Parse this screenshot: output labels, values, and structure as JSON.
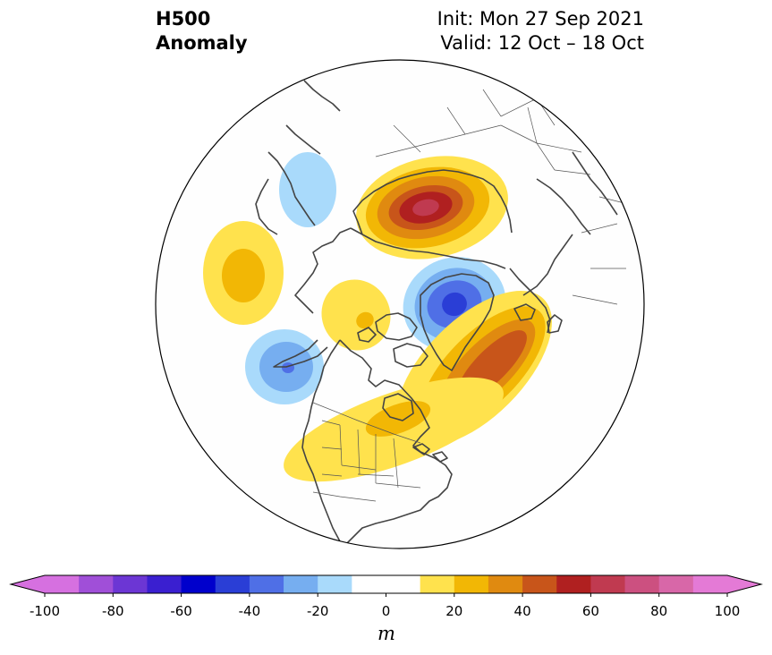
{
  "title": {
    "variable": "H500",
    "kind": "Anomaly",
    "init": "Init: Mon 27 Sep 2021",
    "valid": "Valid: 12 Oct – 18 Oct"
  },
  "colorbar": {
    "unit": "m",
    "ticks": [
      "-100",
      "-80",
      "-60",
      "-40",
      "-20",
      "0",
      "20",
      "40",
      "60",
      "80",
      "100"
    ],
    "colors": [
      "#d670e0",
      "#a04fd8",
      "#6c36d4",
      "#3a1fd0",
      "#0000cc",
      "#2a3ed6",
      "#4f6fe6",
      "#76aef0",
      "#a9dafb",
      "#ffffff",
      "#ffffff",
      "#ffe24d",
      "#f2b705",
      "#e08a10",
      "#c8551a",
      "#b02020",
      "#c03a50",
      "#cc5080",
      "#d867a8",
      "#e47ad6"
    ],
    "extend_low_color": "#d670e0",
    "extend_high_color": "#e47ad6"
  },
  "anomalies": [
    {
      "label": "siberia-high",
      "levels": [
        {
          "color": "#ffe24d"
        },
        {
          "color": "#f2b705"
        },
        {
          "color": "#e08a10"
        },
        {
          "color": "#c8551a"
        },
        {
          "color": "#b02020"
        },
        {
          "color": "#c03a50"
        }
      ]
    },
    {
      "label": "greenland-low",
      "levels": [
        {
          "color": "#a9dafb"
        },
        {
          "color": "#76aef0"
        },
        {
          "color": "#4f6fe6"
        },
        {
          "color": "#2a3ed6"
        }
      ]
    },
    {
      "label": "atlantic-high",
      "levels": [
        {
          "color": "#ffe24d"
        },
        {
          "color": "#f2b705"
        },
        {
          "color": "#e08a10"
        },
        {
          "color": "#c8551a"
        },
        {
          "color": "#b02020"
        }
      ]
    },
    {
      "label": "north-america-high",
      "levels": [
        {
          "color": "#ffe24d"
        },
        {
          "color": "#f2b705"
        }
      ]
    },
    {
      "label": "pacific-low",
      "levels": [
        {
          "color": "#a9dafb"
        },
        {
          "color": "#76aef0"
        },
        {
          "color": "#4f6fe6"
        }
      ]
    },
    {
      "label": "arctic-high",
      "levels": [
        {
          "color": "#ffe24d"
        },
        {
          "color": "#f2b705"
        }
      ]
    },
    {
      "label": "asia-high",
      "levels": [
        {
          "color": "#ffe24d"
        },
        {
          "color": "#f2b705"
        }
      ]
    },
    {
      "label": "europe-low",
      "levels": [
        {
          "color": "#a9dafb"
        }
      ]
    }
  ]
}
